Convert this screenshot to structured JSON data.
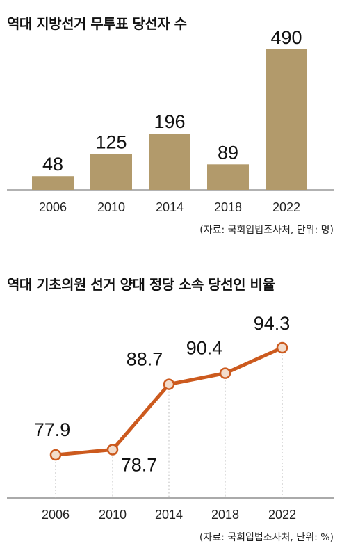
{
  "chart_data": [
    {
      "type": "bar",
      "title": "역대 지방선거 무투표 당선자 수",
      "categories": [
        "2006",
        "2010",
        "2014",
        "2018",
        "2022"
      ],
      "values": [
        48,
        125,
        196,
        89,
        490
      ],
      "color": "#b29a6b",
      "source": "(자료: 국회입법조사처, 단위: 명)"
    },
    {
      "type": "line",
      "title": "역대 기초의원 선거 양대 정당 소속 당선인 비율",
      "categories": [
        "2006",
        "2010",
        "2014",
        "2018",
        "2022"
      ],
      "values": [
        77.9,
        78.7,
        88.7,
        90.4,
        94.3
      ],
      "color": "#cc5a1e",
      "marker_fill": "#f3dccb",
      "source": "(자료: 국회입법조사처, 단위: %)"
    }
  ]
}
